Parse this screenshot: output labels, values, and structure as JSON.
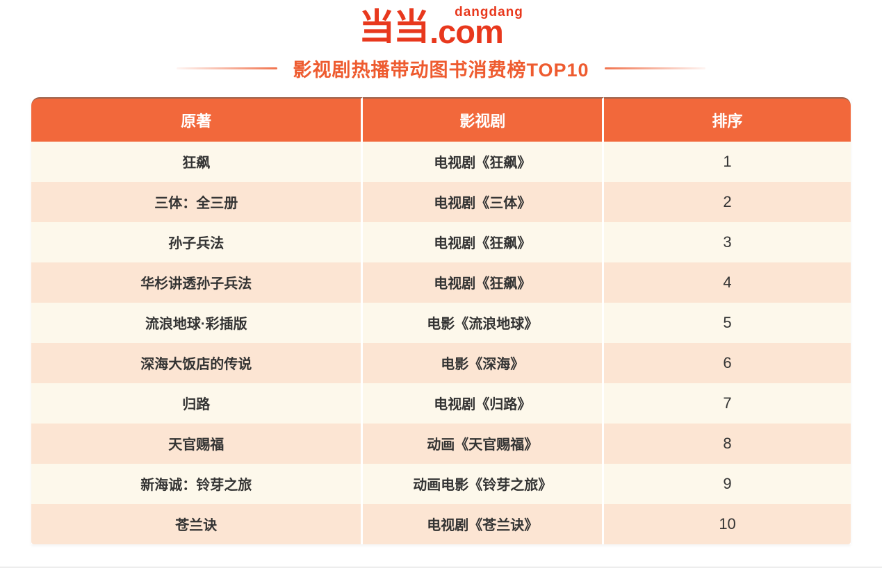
{
  "brand": {
    "logo_chars": "当当",
    "logo_latin": "dangdang",
    "logo_domain": ".com"
  },
  "title": "影视剧热播带动图书消费榜TOP10",
  "colors": {
    "brand": "#E8381D",
    "title_color": "#EE5B2F",
    "header_bg": "#F2683B",
    "header_text": "#FFFFFF",
    "row_odd": "#FDF8EB",
    "row_even": "#FCE5D3",
    "body_text": "#333333"
  },
  "chart_data": {
    "type": "table",
    "title": "影视剧热播带动图书消费榜TOP10",
    "columns": [
      "原著",
      "影视剧",
      "排序"
    ],
    "rows": [
      {
        "original": "狂飙",
        "adaptation": "电视剧《狂飙》",
        "rank": "1"
      },
      {
        "original": "三体：全三册",
        "adaptation": "电视剧《三体》",
        "rank": "2"
      },
      {
        "original": "孙子兵法",
        "adaptation": "电视剧《狂飙》",
        "rank": "3"
      },
      {
        "original": "华杉讲透孙子兵法",
        "adaptation": "电视剧《狂飙》",
        "rank": "4"
      },
      {
        "original": "流浪地球·彩插版",
        "adaptation": "电影《流浪地球》",
        "rank": "5"
      },
      {
        "original": "深海大饭店的传说",
        "adaptation": "电影《深海》",
        "rank": "6"
      },
      {
        "original": "归路",
        "adaptation": "电视剧《归路》",
        "rank": "7"
      },
      {
        "original": "天官赐福",
        "adaptation": "动画《天官赐福》",
        "rank": "8"
      },
      {
        "original": "新海诚：铃芽之旅",
        "adaptation": "动画电影《铃芽之旅》",
        "rank": "9"
      },
      {
        "original": "苍兰诀",
        "adaptation": "电视剧《苍兰诀》",
        "rank": "10"
      }
    ]
  }
}
